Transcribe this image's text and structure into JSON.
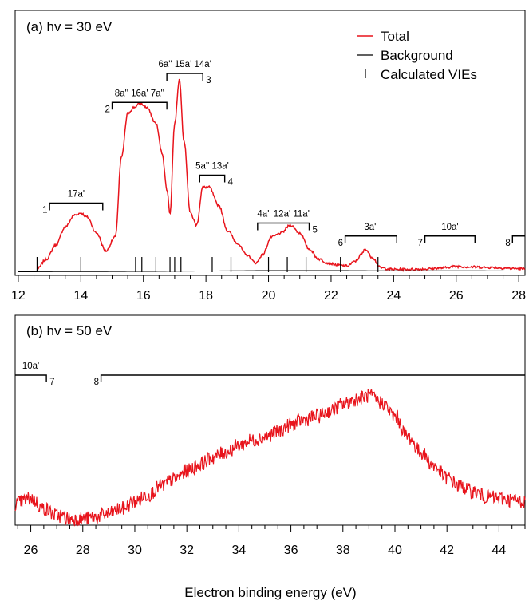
{
  "colors": {
    "total": "#e8141c",
    "background": "#000000",
    "vie": "#000000"
  },
  "chart_data": [
    {
      "type": "line",
      "panel_label": "(a) hv = 30 eV",
      "xlim": [
        11.9,
        28.2
      ],
      "ylim": [
        0,
        1
      ],
      "x_ticks": [
        "12",
        "14",
        "16",
        "18",
        "20",
        "22",
        "24",
        "26",
        "28"
      ],
      "legend": {
        "position": "top-right",
        "entries": [
          "Total",
          "Background",
          "Calculated VIEs"
        ]
      },
      "series": [
        {
          "name": "Total",
          "color": "#e8141c",
          "x": [
            12.6,
            12.9,
            13.2,
            13.5,
            13.8,
            14.0,
            14.2,
            14.5,
            14.8,
            15.1,
            15.3,
            15.5,
            15.7,
            15.9,
            16.1,
            16.4,
            16.6,
            16.75,
            16.85,
            17.0,
            17.15,
            17.3,
            17.5,
            17.7,
            17.9,
            18.1,
            18.4,
            18.7,
            19.0,
            19.3,
            19.6,
            19.8,
            20.1,
            20.4,
            20.7,
            21.0,
            21.3,
            21.6,
            21.9,
            22.2,
            22.5,
            22.8,
            22.95,
            23.1,
            23.3,
            23.6,
            24.0,
            24.5,
            25.0,
            25.5,
            26.0,
            26.5,
            27.0,
            27.5,
            28.0,
            28.2
          ],
          "y": [
            0.02,
            0.07,
            0.14,
            0.23,
            0.29,
            0.3,
            0.28,
            0.2,
            0.11,
            0.18,
            0.58,
            0.8,
            0.83,
            0.85,
            0.83,
            0.75,
            0.6,
            0.42,
            0.3,
            0.75,
            0.97,
            0.66,
            0.3,
            0.24,
            0.43,
            0.43,
            0.34,
            0.21,
            0.15,
            0.09,
            0.05,
            0.09,
            0.18,
            0.2,
            0.24,
            0.2,
            0.12,
            0.07,
            0.05,
            0.04,
            0.035,
            0.06,
            0.09,
            0.12,
            0.08,
            0.025,
            0.018,
            0.018,
            0.02,
            0.025,
            0.033,
            0.03,
            0.028,
            0.025,
            0.022,
            0.02
          ]
        },
        {
          "name": "Background",
          "color": "#000000",
          "x": [
            12.0,
            14.0,
            16.0,
            18.0,
            20.0,
            22.0,
            24.0,
            26.0,
            28.2
          ],
          "y": [
            0.006,
            0.007,
            0.008,
            0.01,
            0.012,
            0.012,
            0.011,
            0.011,
            0.01
          ]
        }
      ],
      "vies": [
        12.6,
        14.0,
        15.75,
        15.95,
        16.4,
        16.85,
        17.0,
        17.2,
        18.2,
        18.8,
        20.0,
        20.6,
        21.2,
        22.3,
        23.5
      ],
      "bracket_sets": [
        {
          "number": "1",
          "label": "17a'",
          "x_start": 13.0,
          "x_end": 14.7,
          "level": 0.35
        },
        {
          "number": "2",
          "label": "8a'' 16a' 7a''",
          "x_start": 15.0,
          "x_end": 16.75,
          "level": 0.855
        },
        {
          "number": "3",
          "label": "6a'' 15a' 14a'",
          "x_start": 16.75,
          "x_end": 17.9,
          "level": 1.0
        },
        {
          "number": "4",
          "label": "5a'' 13a'",
          "x_start": 17.8,
          "x_end": 18.6,
          "level": 0.49
        },
        {
          "number": "5",
          "label": "4a'' 12a' 11a'",
          "x_start": 19.65,
          "x_end": 21.3,
          "level": 0.25
        },
        {
          "number": "6",
          "label": "3a''",
          "x_start": 22.45,
          "x_end": 24.1,
          "level": 0.185
        },
        {
          "number": "7",
          "label": "10a'",
          "x_start": 25.0,
          "x_end": 26.6,
          "level": 0.185
        },
        {
          "number": "8",
          "label": "",
          "x_start": 27.8,
          "x_end": 28.3,
          "level": 0.185
        }
      ]
    },
    {
      "type": "line",
      "panel_label": "(b) hv = 50 eV",
      "xlim": [
        25.4,
        45.0
      ],
      "ylim": [
        0,
        1
      ],
      "x_ticks": [
        "26",
        "28",
        "30",
        "32",
        "34",
        "36",
        "38",
        "40",
        "42",
        "44"
      ],
      "xlabel": "Electron binding energy (eV)",
      "series": [
        {
          "name": "Total",
          "color": "#e8141c",
          "x": [
            25.4,
            26.0,
            26.5,
            27.0,
            27.5,
            28.0,
            28.5,
            29.0,
            29.5,
            30.0,
            30.5,
            31.0,
            31.5,
            32.0,
            32.5,
            33.0,
            33.5,
            34.0,
            34.5,
            35.0,
            35.5,
            36.0,
            36.5,
            37.0,
            37.5,
            38.0,
            38.5,
            39.0,
            39.5,
            40.0,
            40.5,
            41.0,
            41.5,
            42.0,
            42.5,
            43.0,
            43.5,
            44.0,
            44.5,
            45.0
          ],
          "y": [
            0.23,
            0.26,
            0.2,
            0.16,
            0.14,
            0.14,
            0.15,
            0.17,
            0.2,
            0.24,
            0.28,
            0.33,
            0.37,
            0.42,
            0.46,
            0.5,
            0.53,
            0.57,
            0.6,
            0.62,
            0.65,
            0.69,
            0.72,
            0.74,
            0.77,
            0.81,
            0.84,
            0.86,
            0.82,
            0.74,
            0.62,
            0.53,
            0.45,
            0.38,
            0.33,
            0.3,
            0.27,
            0.26,
            0.25,
            0.24
          ]
        }
      ],
      "bracket_sets": [
        {
          "number": "7",
          "label": "10a'",
          "x_start": 25.2,
          "x_end": 26.6,
          "level": 0.92
        },
        {
          "number": "8",
          "label": "",
          "x_start": 28.7,
          "x_end": 45.5,
          "level": 0.92
        }
      ]
    }
  ]
}
